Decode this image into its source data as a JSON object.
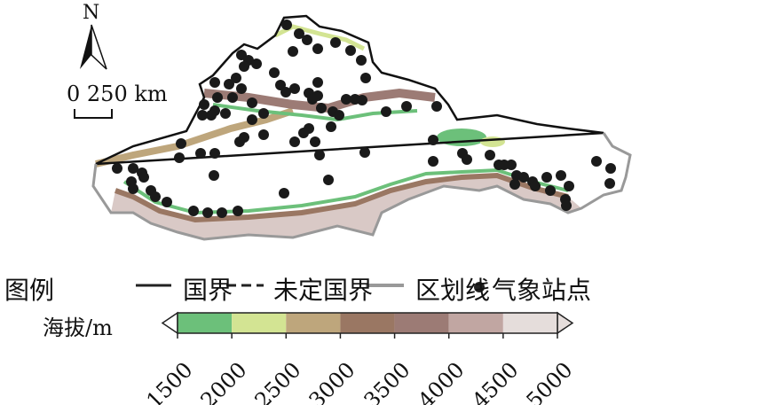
{
  "compass": {
    "label": "N"
  },
  "scale": {
    "label": "0 250 km"
  },
  "legend": {
    "title": "图例",
    "items": [
      {
        "label": "国界",
        "symbol": "solid-line",
        "color": "#222222"
      },
      {
        "label": "未定国界",
        "symbol": "dashed-line",
        "color": "#222222"
      },
      {
        "label": "区划线",
        "symbol": "solid-line",
        "color": "#999999"
      },
      {
        "label": "气象站点",
        "symbol": "dot",
        "color": "#222222"
      }
    ]
  },
  "colorbar": {
    "label": "海拔/m",
    "ticks": [
      "1500",
      "2000",
      "2500",
      "3000",
      "3500",
      "4000",
      "4500",
      "5000"
    ],
    "colors": [
      "#6cc07a",
      "#d3e493",
      "#bea67c",
      "#9a7763",
      "#9c7b75",
      "#c1a6a2",
      "#e5dddb"
    ],
    "below_color": "#ffffff",
    "above_color": "#e5dddb"
  }
}
